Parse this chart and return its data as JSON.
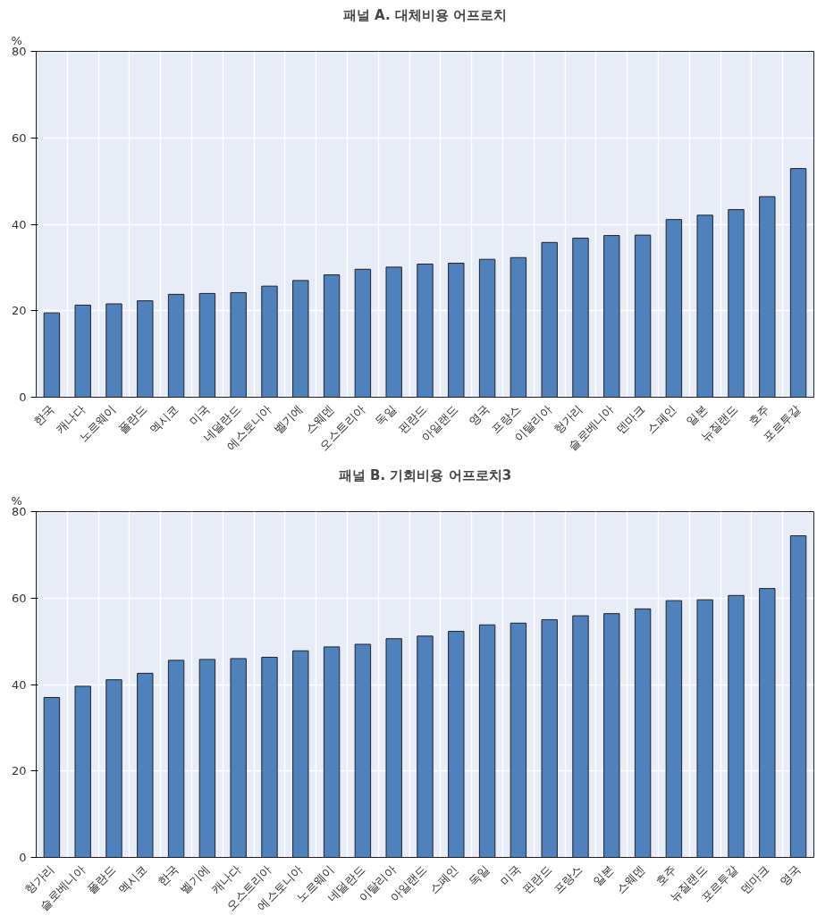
{
  "chart_data": [
    {
      "type": "bar",
      "title": "패널 A. 대체비용 어프로치",
      "ylabel": "%",
      "color": "#4f81bd",
      "categories": [
        "한국",
        "캐나다",
        "노르웨이",
        "폴란드",
        "멕시코",
        "미국",
        "네덜란드",
        "에스토니아",
        "벨기에",
        "스웨덴",
        "오스트리아",
        "독일",
        "핀란드",
        "아일랜드",
        "영국",
        "프랑스",
        "이탈리아",
        "헝가리",
        "슬로베니아",
        "덴마크",
        "스페인",
        "일본",
        "뉴질랜드",
        "호주",
        "포르투갈"
      ],
      "values": [
        19.5,
        21.3,
        21.6,
        22.3,
        23.8,
        24.0,
        24.2,
        25.7,
        27.0,
        28.3,
        29.6,
        30.1,
        30.8,
        31.0,
        31.9,
        32.3,
        35.8,
        36.8,
        37.4,
        37.5,
        41.1,
        42.1,
        43.4,
        46.4,
        52.9
      ],
      "ylim": [
        0,
        80
      ],
      "yticks": [
        0,
        20,
        40,
        60,
        80
      ],
      "grid": true
    },
    {
      "type": "bar",
      "title": "패널 B. 기회비용 어프로치3",
      "ylabel": "%",
      "color": "#4f81bd",
      "categories": [
        "헝가리",
        "슬로베니아",
        "폴란드",
        "멕시코",
        "한국",
        "벨기에",
        "캐나다",
        "오스트리아",
        "에스토니아",
        "노르웨이",
        "네덜란드",
        "이탈리아",
        "아일랜드",
        "스페인",
        "독일",
        "미국",
        "핀란드",
        "프랑스",
        "일본",
        "스웨덴",
        "호주",
        "뉴질랜드",
        "포르투갈",
        "덴마크",
        "영국"
      ],
      "values": [
        37.0,
        39.6,
        41.1,
        42.6,
        45.6,
        45.8,
        46.0,
        46.3,
        47.8,
        48.7,
        49.3,
        50.6,
        51.2,
        52.3,
        53.8,
        54.2,
        55.0,
        55.9,
        56.4,
        57.5,
        59.4,
        59.6,
        60.6,
        62.2,
        74.4
      ],
      "ylim": [
        0,
        80
      ],
      "yticks": [
        0,
        20,
        40,
        60,
        80
      ],
      "grid": true
    }
  ]
}
